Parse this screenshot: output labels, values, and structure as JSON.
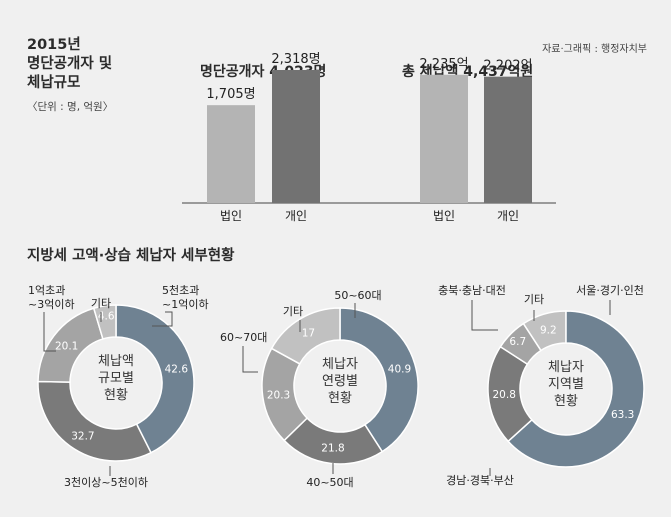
{
  "header": {
    "title_lines": [
      "2015년",
      "명단공개자 및",
      "체납규모"
    ],
    "unit": "〈단위 : 명, 억원〉",
    "source": "자료·그래픽 : 행정자치부"
  },
  "section_title": "지방세 고액·상습 체납자 세부현황",
  "colors": {
    "light": "#b4b4b4",
    "dark": "#727272",
    "blue": "#6f8292",
    "pie_light": "#c1c1c1",
    "pie_mid": "#a4a4a4",
    "pie_dark": "#7a7a7a"
  },
  "chart_data": [
    {
      "type": "bar",
      "title": "명단공개자 4,023명",
      "categories": [
        "법인",
        "개인"
      ],
      "values": [
        1705,
        2318
      ],
      "value_labels": [
        "1,705명",
        "2,318명"
      ]
    },
    {
      "type": "bar",
      "title": "총 체납액 4,437억원",
      "categories": [
        "법인",
        "개인"
      ],
      "values": [
        2235,
        2202
      ],
      "value_labels": [
        "2,235억",
        "2,202억"
      ]
    },
    {
      "type": "pie",
      "title": "체납액 규모별 현황",
      "center_lines": [
        "체납액",
        "규모별",
        "현황"
      ],
      "slices": [
        {
          "label": "5천초과 ~1억이하",
          "value": 42.6
        },
        {
          "label": "3천이상~5천이하",
          "value": 32.7
        },
        {
          "label": "1억초과 ~3억이하",
          "value": 20.1
        },
        {
          "label": "기타",
          "value": 4.6
        }
      ]
    },
    {
      "type": "pie",
      "title": "체납자 연령별 현황",
      "center_lines": [
        "체납자",
        "연령별",
        "현황"
      ],
      "slices": [
        {
          "label": "50~60대",
          "value": 40.9
        },
        {
          "label": "40~50대",
          "value": 21.8
        },
        {
          "label": "60~70대",
          "value": 20.3
        },
        {
          "label": "기타",
          "value": 17
        }
      ]
    },
    {
      "type": "pie",
      "title": "체납자 지역별 현황",
      "center_lines": [
        "체납자",
        "지역별",
        "현황"
      ],
      "slices": [
        {
          "label": "서울·경기·인천",
          "value": 63.3
        },
        {
          "label": "경남·경북·부산",
          "value": 20.8
        },
        {
          "label": "충북·충남·대전",
          "value": 6.7
        },
        {
          "label": "기타",
          "value": 9.2
        }
      ]
    }
  ]
}
